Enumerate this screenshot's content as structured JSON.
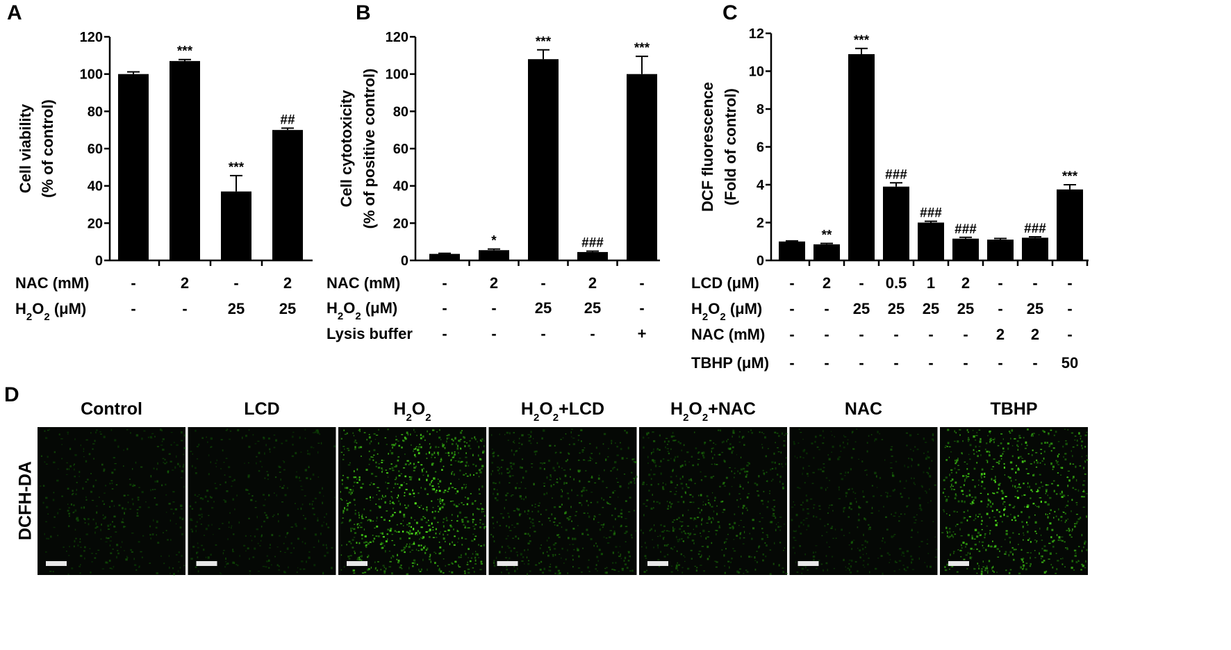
{
  "panel_d": {
    "letter": "D",
    "row_label": "DCFH-DA",
    "images": [
      {
        "label": [
          {
            "t": "Control"
          }
        ],
        "brightness": 0.35,
        "density": 0.28,
        "seed": 11
      },
      {
        "label": [
          {
            "t": "LCD"
          }
        ],
        "brightness": 0.32,
        "density": 0.26,
        "seed": 23
      },
      {
        "label": [
          {
            "t": "H"
          },
          {
            "t": "2",
            "sub": true
          },
          {
            "t": "O"
          },
          {
            "t": "2",
            "sub": true
          }
        ],
        "brightness": 0.95,
        "density": 0.62,
        "seed": 37
      },
      {
        "label": [
          {
            "t": "H"
          },
          {
            "t": "2",
            "sub": true
          },
          {
            "t": "O"
          },
          {
            "t": "2",
            "sub": true
          },
          {
            "t": "+LCD"
          }
        ],
        "brightness": 0.5,
        "density": 0.4,
        "seed": 41
      },
      {
        "label": [
          {
            "t": "H"
          },
          {
            "t": "2",
            "sub": true
          },
          {
            "t": "O"
          },
          {
            "t": "2",
            "sub": true
          },
          {
            "t": "+NAC"
          }
        ],
        "brightness": 0.5,
        "density": 0.42,
        "seed": 53
      },
      {
        "label": [
          {
            "t": "NAC"
          }
        ],
        "brightness": 0.34,
        "density": 0.3,
        "seed": 67
      },
      {
        "label": [
          {
            "t": "TBHP"
          }
        ],
        "brightness": 0.9,
        "density": 0.55,
        "seed": 79
      }
    ]
  },
  "chart_data": [
    {
      "type": "bar",
      "panel": "A",
      "ylabel": [
        "Cell viability",
        "(% of control)"
      ],
      "ylim": [
        0,
        120
      ],
      "yticks": [
        0,
        20,
        40,
        60,
        80,
        100,
        120
      ],
      "bar_color": "#000000",
      "values": [
        100,
        107,
        37,
        70
      ],
      "errors": [
        1.2,
        0.8,
        8.5,
        1.0
      ],
      "significance": [
        [
          {
            "t": ""
          }
        ],
        [
          {
            "t": "***"
          }
        ],
        [
          {
            "t": "***"
          }
        ],
        [
          {
            "t": "##"
          }
        ]
      ],
      "table": [
        {
          "label": [
            {
              "t": "NAC (mM)"
            }
          ],
          "cells": [
            "-",
            "2",
            "-",
            "2"
          ]
        },
        {
          "label": [
            {
              "t": "H"
            },
            {
              "t": "2",
              "sub": true
            },
            {
              "t": "O"
            },
            {
              "t": "2",
              "sub": true
            },
            {
              "t": " (μM)"
            }
          ],
          "cells": [
            "-",
            "-",
            "25",
            "25"
          ]
        }
      ]
    },
    {
      "type": "bar",
      "panel": "B",
      "ylabel": [
        "Cell cytotoxicity",
        "(% of positive control)"
      ],
      "ylim": [
        0,
        120
      ],
      "yticks": [
        0,
        20,
        40,
        60,
        80,
        100,
        120
      ],
      "bar_color": "#000000",
      "values": [
        3.5,
        5.5,
        108,
        4.5,
        100
      ],
      "errors": [
        0.3,
        0.6,
        5,
        0.5,
        9.5
      ],
      "significance": [
        [
          {
            "t": ""
          }
        ],
        [
          {
            "t": "*"
          }
        ],
        [
          {
            "t": "***"
          }
        ],
        [
          {
            "t": "###"
          }
        ],
        [
          {
            "t": "***"
          }
        ]
      ],
      "table": [
        {
          "label": [
            {
              "t": "NAC (mM)"
            }
          ],
          "cells": [
            "-",
            "2",
            "-",
            "2",
            "-"
          ]
        },
        {
          "label": [
            {
              "t": "H"
            },
            {
              "t": "2",
              "sub": true
            },
            {
              "t": "O"
            },
            {
              "t": "2",
              "sub": true
            },
            {
              "t": " (μM)"
            }
          ],
          "cells": [
            "-",
            "-",
            "25",
            "25",
            "-"
          ]
        },
        {
          "label": [
            {
              "t": "Lysis buffer"
            }
          ],
          "cells": [
            "-",
            "-",
            "-",
            "-",
            "+"
          ]
        }
      ]
    },
    {
      "type": "bar",
      "panel": "C",
      "ylabel": [
        "DCF fluorescence",
        "(Fold of control)"
      ],
      "ylim": [
        0,
        12
      ],
      "yticks": [
        0,
        2,
        4,
        6,
        8,
        10,
        12
      ],
      "bar_color": "#000000",
      "values": [
        1.0,
        0.85,
        10.9,
        3.9,
        2.0,
        1.15,
        1.1,
        1.2,
        3.75
      ],
      "errors": [
        0.03,
        0.05,
        0.3,
        0.2,
        0.07,
        0.07,
        0.06,
        0.05,
        0.25
      ],
      "significance": [
        [
          {
            "t": ""
          }
        ],
        [
          {
            "t": "**"
          }
        ],
        [
          {
            "t": "***"
          }
        ],
        [
          {
            "t": "###"
          }
        ],
        [
          {
            "t": "###"
          }
        ],
        [
          {
            "t": "###"
          }
        ],
        [
          {
            "t": ""
          }
        ],
        [
          {
            "t": "###"
          }
        ],
        [
          {
            "t": "***"
          }
        ]
      ],
      "table": [
        {
          "label": [
            {
              "t": "LCD (μM)"
            }
          ],
          "cells": [
            "-",
            "2",
            "-",
            "0.5",
            "1",
            "2",
            "-",
            "-",
            "-"
          ]
        },
        {
          "label": [
            {
              "t": "H"
            },
            {
              "t": "2",
              "sub": true
            },
            {
              "t": "O"
            },
            {
              "t": "2",
              "sub": true
            },
            {
              "t": " (μM)"
            }
          ],
          "cells": [
            "-",
            "-",
            "25",
            "25",
            "25",
            "25",
            "-",
            "25",
            "-"
          ]
        },
        {
          "label": [
            {
              "t": "NAC (mM)"
            }
          ],
          "cells": [
            "-",
            "-",
            "-",
            "-",
            "-",
            "-",
            "2",
            "2",
            "-"
          ]
        },
        {
          "label": [
            {
              "t": "TBHP (μM)"
            }
          ],
          "cells": [
            "-",
            "-",
            "-",
            "-",
            "-",
            "-",
            "-",
            "-",
            "50"
          ]
        }
      ]
    }
  ]
}
